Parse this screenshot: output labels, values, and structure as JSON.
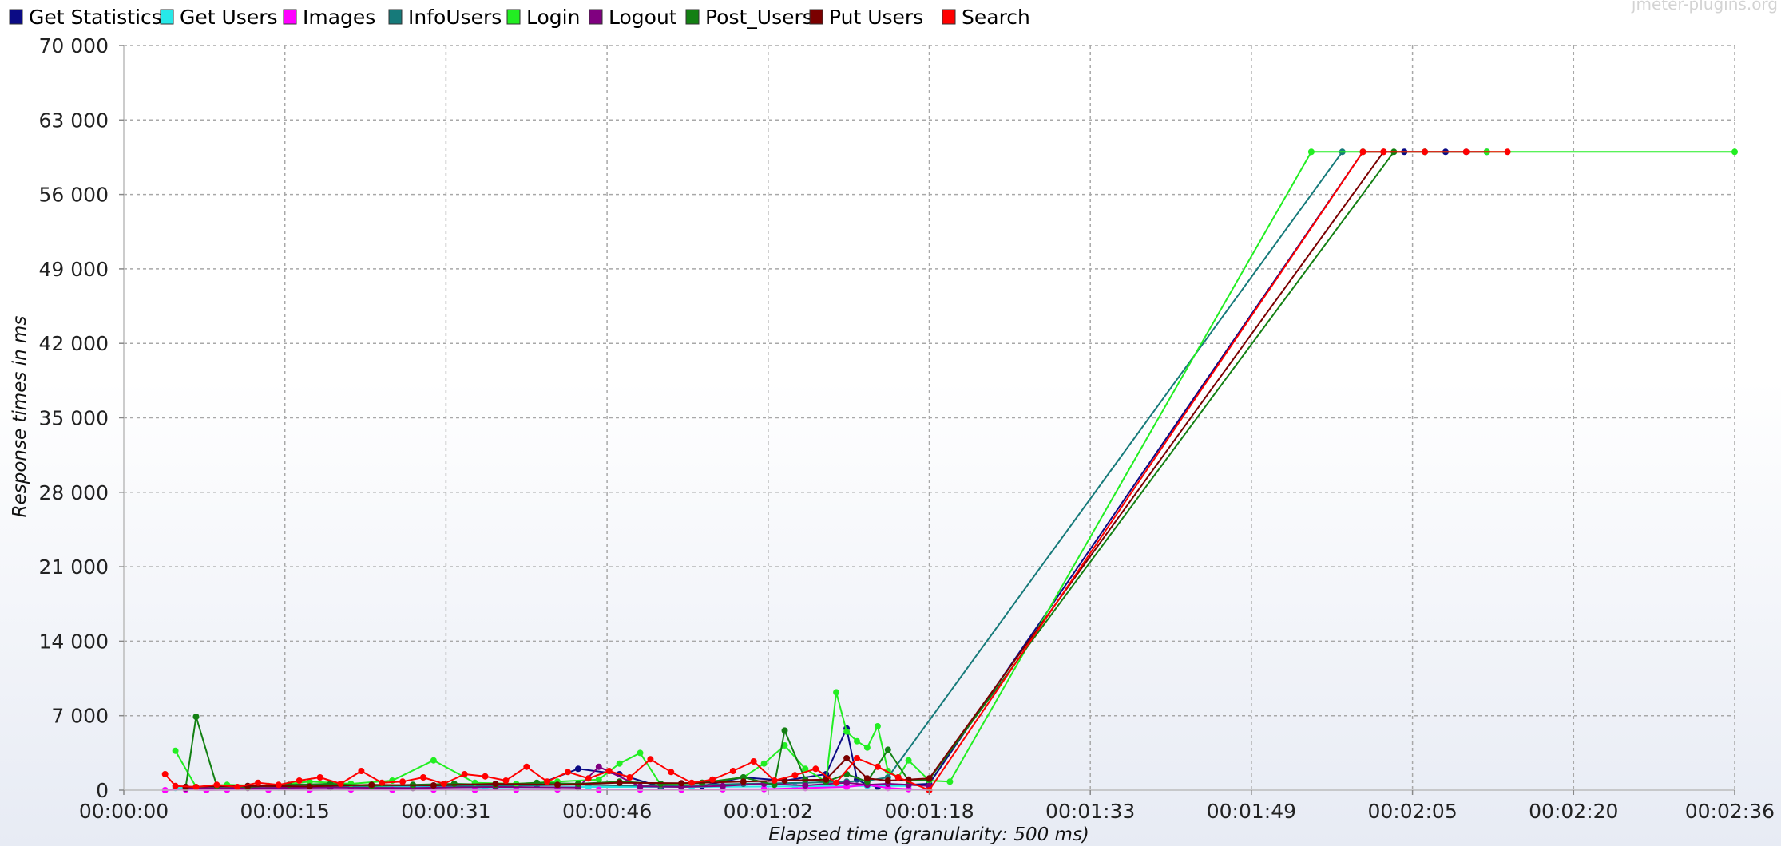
{
  "watermark": "jmeter-plugins.org",
  "chart_data": {
    "type": "line",
    "xlabel": "Elapsed time (granularity: 500 ms)",
    "ylabel": "Response times in ms",
    "ylim": [
      0,
      70000
    ],
    "xlim_seconds": [
      0,
      156
    ],
    "y_ticks": [
      "0",
      "7 000",
      "14 000",
      "21 000",
      "28 000",
      "35 000",
      "42 000",
      "49 000",
      "56 000",
      "63 000",
      "70 000"
    ],
    "x_ticks": [
      "00:00:00",
      "00:00:15",
      "00:00:31",
      "00:00:46",
      "00:01:02",
      "00:01:18",
      "00:01:33",
      "00:01:49",
      "00:02:05",
      "00:02:20",
      "00:02:36"
    ],
    "grid": true,
    "legend_position": "top",
    "series": [
      {
        "name": "Get Statistics",
        "color": "#0b0b85",
        "x": [
          6,
          12,
          20,
          28,
          35,
          40,
          44,
          48,
          52,
          56,
          60,
          64,
          68,
          70,
          71,
          72,
          73,
          74,
          76,
          78,
          120,
          124,
          126,
          128,
          130,
          132
        ],
        "y": [
          250,
          350,
          300,
          400,
          300,
          500,
          2000,
          1500,
          300,
          400,
          1200,
          900,
          1500,
          5800,
          1000,
          500,
          300,
          400,
          500,
          600,
          60000,
          60000,
          60000,
          60000,
          60000,
          60000
        ]
      },
      {
        "name": "Get Users",
        "color": "#27e8e8",
        "x": [
          5,
          15,
          25,
          35,
          45,
          55,
          65,
          72,
          76
        ],
        "y": [
          200,
          250,
          300,
          250,
          300,
          300,
          350,
          400,
          400
        ]
      },
      {
        "name": "Images",
        "color": "#ff00ff",
        "x": [
          4,
          6,
          8,
          10,
          14,
          18,
          22,
          26,
          30,
          34,
          38,
          42,
          46,
          50,
          54,
          58,
          62,
          66,
          70,
          72,
          74,
          76,
          78
        ],
        "y": [
          0,
          50,
          0,
          30,
          40,
          20,
          60,
          30,
          50,
          20,
          40,
          60,
          30,
          50,
          40,
          80,
          100,
          200,
          300,
          500,
          200,
          100,
          0
        ]
      },
      {
        "name": "InfoUsers",
        "color": "#167a7a",
        "x": [
          6,
          12,
          20,
          28,
          36,
          44,
          52,
          60,
          66,
          70,
          72,
          74,
          118
        ],
        "y": [
          300,
          400,
          350,
          450,
          400,
          500,
          400,
          600,
          700,
          800,
          900,
          1200,
          60000
        ]
      },
      {
        "name": "Login",
        "color": "#22ee22",
        "x": [
          5,
          7,
          10,
          14,
          18,
          22,
          26,
          30,
          34,
          38,
          42,
          46,
          48,
          50,
          52,
          56,
          60,
          62,
          64,
          66,
          68,
          69,
          70,
          71,
          72,
          73,
          74,
          75,
          76,
          78,
          80,
          115,
          120,
          126,
          132,
          156
        ],
        "y": [
          3700,
          300,
          500,
          400,
          800,
          600,
          900,
          2800,
          700,
          600,
          800,
          1000,
          2500,
          3500,
          500,
          700,
          1200,
          2500,
          4200,
          2000,
          800,
          9200,
          5500,
          4600,
          4000,
          6000,
          1800,
          1200,
          2800,
          900,
          800,
          60000,
          60000,
          60000,
          60000,
          60000
        ]
      },
      {
        "name": "Logout",
        "color": "#800080",
        "x": [
          6,
          12,
          20,
          28,
          36,
          44,
          46,
          50,
          54,
          58,
          62,
          66,
          70,
          72,
          74,
          76,
          78
        ],
        "y": [
          150,
          200,
          250,
          200,
          300,
          250,
          2200,
          350,
          300,
          400,
          600,
          450,
          700,
          500,
          600,
          500,
          400
        ]
      },
      {
        "name": "Post_Users",
        "color": "#138013",
        "x": [
          6,
          7,
          9,
          12,
          16,
          20,
          24,
          28,
          32,
          36,
          40,
          44,
          48,
          52,
          56,
          60,
          63,
          64,
          66,
          68,
          70,
          72,
          74,
          76,
          78,
          123
        ],
        "y": [
          300,
          6900,
          400,
          300,
          500,
          600,
          400,
          500,
          600,
          500,
          700,
          600,
          800,
          600,
          700,
          1200,
          500,
          5600,
          1000,
          800,
          1500,
          800,
          3800,
          900,
          1000,
          60000
        ]
      },
      {
        "name": "Put Users",
        "color": "#7a0000",
        "x": [
          6,
          12,
          18,
          24,
          30,
          36,
          42,
          48,
          54,
          60,
          64,
          68,
          70,
          72,
          74,
          76,
          78,
          122
        ],
        "y": [
          300,
          400,
          350,
          500,
          450,
          600,
          500,
          700,
          650,
          800,
          900,
          1000,
          3000,
          1100,
          900,
          1000,
          1100,
          60000
        ]
      },
      {
        "name": "Search",
        "color": "#ff0000",
        "x": [
          4,
          5,
          7,
          9,
          11,
          13,
          15,
          17,
          19,
          21,
          23,
          25,
          27,
          29,
          31,
          33,
          35,
          37,
          39,
          41,
          43,
          45,
          47,
          49,
          51,
          53,
          55,
          57,
          59,
          61,
          63,
          65,
          67,
          69,
          71,
          73,
          75,
          78,
          120,
          122,
          126,
          130,
          134
        ],
        "y": [
          1500,
          400,
          300,
          500,
          300,
          700,
          500,
          900,
          1200,
          600,
          1800,
          700,
          800,
          1200,
          600,
          1500,
          1300,
          900,
          2200,
          800,
          1700,
          1100,
          1800,
          1200,
          2900,
          1700,
          700,
          1000,
          1800,
          2700,
          900,
          1400,
          2000,
          700,
          3000,
          2200,
          1200,
          0,
          60000,
          60000,
          60000,
          60000,
          60000
        ]
      }
    ]
  }
}
